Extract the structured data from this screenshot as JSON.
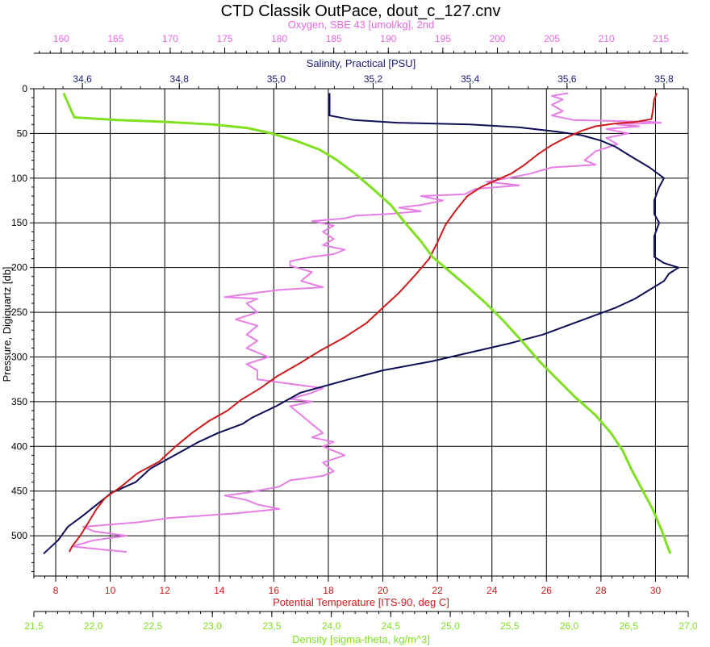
{
  "chart_data": {
    "type": "line",
    "title": "CTD Classik OutPace, dout_c_127.cnv",
    "y_axis": {
      "label": "Pressure, Digiquartz [db]",
      "ticks": [
        0,
        50,
        100,
        150,
        200,
        250,
        300,
        350,
        400,
        450,
        500
      ],
      "range": [
        0,
        545
      ],
      "inverted": true
    },
    "x_axes": [
      {
        "id": "oxygen",
        "label": "Oxygen, SBE 43 [umol/kg], 2nd",
        "position": "top-1",
        "color": "#e667e6",
        "range": [
          157.5,
          217.5
        ],
        "ticks": [
          160,
          165,
          170,
          175,
          180,
          185,
          190,
          195,
          200,
          205,
          210,
          215
        ],
        "tick_labels": [
          "160",
          "165",
          "170",
          "175",
          "180",
          "185",
          "190",
          "195",
          "200",
          "205",
          "210",
          "215"
        ]
      },
      {
        "id": "salinity",
        "label": "Salinity, Practical [PSU]",
        "position": "top-2",
        "color": "#1a1a7a",
        "range": [
          34.5,
          35.85
        ],
        "ticks": [
          34.6,
          34.8,
          35.0,
          35.2,
          35.4,
          35.6,
          35.8
        ],
        "tick_labels": [
          "34,6",
          "34,8",
          "35,0",
          "35,2",
          "35,4",
          "35,6",
          "35,8"
        ]
      },
      {
        "id": "temperature",
        "label": "Potential Temperature [ITS-90, deg C]",
        "position": "bottom-1",
        "color": "#cc1a1a",
        "range": [
          7.2,
          31.2
        ],
        "ticks": [
          8,
          10,
          12,
          14,
          16,
          18,
          20,
          22,
          24,
          26,
          28,
          30
        ],
        "tick_labels": [
          "8",
          "10",
          "12",
          "14",
          "16",
          "18",
          "20",
          "22",
          "24",
          "26",
          "28",
          "30"
        ]
      },
      {
        "id": "density",
        "label": "Density [sigma-theta, kg/m^3]",
        "position": "bottom-2",
        "color": "#80e020",
        "range": [
          21.5,
          27.0
        ],
        "ticks": [
          21.5,
          22.0,
          22.5,
          23.0,
          23.5,
          24.0,
          24.5,
          25.0,
          25.5,
          26.0,
          26.5,
          27.0
        ],
        "tick_labels": [
          "21,5",
          "22,0",
          "22,5",
          "23,0",
          "23,5",
          "24,0",
          "24,5",
          "25,0",
          "25,5",
          "26,0",
          "26,5",
          "27,0"
        ]
      }
    ],
    "grid": true,
    "legend": "none",
    "series": [
      {
        "axis": "oxygen",
        "color": "#e67ee6",
        "points": [
          [
            206.5,
            5
          ],
          [
            205,
            8
          ],
          [
            206,
            12
          ],
          [
            205,
            18
          ],
          [
            206,
            25
          ],
          [
            205,
            30
          ],
          [
            207,
            35
          ],
          [
            214,
            37
          ],
          [
            215,
            38
          ],
          [
            211,
            40
          ],
          [
            213,
            42
          ],
          [
            210,
            45
          ],
          [
            212,
            50
          ],
          [
            210,
            55
          ],
          [
            211,
            62
          ],
          [
            209,
            70
          ],
          [
            208,
            80
          ],
          [
            209,
            85
          ],
          [
            205,
            88
          ],
          [
            203,
            95
          ],
          [
            201,
            100
          ],
          [
            199,
            104
          ],
          [
            202,
            108
          ],
          [
            198,
            112
          ],
          [
            197,
            118
          ],
          [
            193,
            120
          ],
          [
            195,
            125
          ],
          [
            193,
            130
          ],
          [
            191,
            133
          ],
          [
            193,
            137
          ],
          [
            190,
            140
          ],
          [
            187,
            142
          ],
          [
            186,
            145
          ],
          [
            183,
            148
          ],
          [
            185,
            153
          ],
          [
            184,
            160
          ],
          [
            185,
            168
          ],
          [
            184,
            175
          ],
          [
            186,
            180
          ],
          [
            185,
            185
          ],
          [
            183,
            188
          ],
          [
            181,
            193
          ],
          [
            181,
            198
          ],
          [
            183,
            205
          ],
          [
            182,
            215
          ],
          [
            184,
            222
          ],
          [
            180,
            225
          ],
          [
            178,
            228
          ],
          [
            175,
            233
          ],
          [
            178,
            235
          ],
          [
            177,
            240
          ],
          [
            178,
            250
          ],
          [
            176,
            258
          ],
          [
            178,
            265
          ],
          [
            177,
            275
          ],
          [
            178,
            282
          ],
          [
            177,
            290
          ],
          [
            179,
            300
          ],
          [
            177,
            308
          ],
          [
            178,
            315
          ],
          [
            178,
            325
          ],
          [
            181,
            330
          ],
          [
            184,
            335
          ],
          [
            183,
            340
          ],
          [
            181,
            347
          ],
          [
            183,
            350
          ],
          [
            181,
            355
          ],
          [
            182,
            365
          ],
          [
            183,
            375
          ],
          [
            184,
            385
          ],
          [
            183,
            390
          ],
          [
            185,
            395
          ],
          [
            184,
            400
          ],
          [
            186,
            410
          ],
          [
            184,
            418
          ],
          [
            185,
            428
          ],
          [
            184,
            433
          ],
          [
            181,
            438
          ],
          [
            180,
            445
          ],
          [
            177,
            452
          ],
          [
            175,
            455
          ],
          [
            177,
            460
          ],
          [
            178,
            465
          ],
          [
            180,
            470
          ],
          [
            176,
            475
          ],
          [
            170,
            480
          ],
          [
            167,
            485
          ],
          [
            162,
            490
          ],
          [
            163,
            495
          ],
          [
            166,
            500
          ],
          [
            163,
            505
          ],
          [
            161,
            512
          ],
          [
            166,
            518
          ]
        ]
      },
      {
        "axis": "salinity",
        "color": "#0d0d55",
        "points": [
          [
            35.11,
            5
          ],
          [
            35.11,
            15
          ],
          [
            35.11,
            30
          ],
          [
            35.16,
            35
          ],
          [
            35.25,
            38
          ],
          [
            35.4,
            40
          ],
          [
            35.5,
            43
          ],
          [
            35.58,
            48
          ],
          [
            35.63,
            52
          ],
          [
            35.67,
            58
          ],
          [
            35.7,
            65
          ],
          [
            35.73,
            75
          ],
          [
            35.77,
            88
          ],
          [
            35.8,
            100
          ],
          [
            35.79,
            110
          ],
          [
            35.78,
            125
          ],
          [
            35.78,
            140
          ],
          [
            35.79,
            150
          ],
          [
            35.78,
            165
          ],
          [
            35.78,
            178
          ],
          [
            35.78,
            188
          ],
          [
            35.8,
            195
          ],
          [
            35.83,
            200
          ],
          [
            35.81,
            207
          ],
          [
            35.8,
            215
          ],
          [
            35.77,
            225
          ],
          [
            35.74,
            235
          ],
          [
            35.7,
            245
          ],
          [
            35.65,
            255
          ],
          [
            35.6,
            265
          ],
          [
            35.55,
            275
          ],
          [
            35.48,
            285
          ],
          [
            35.4,
            295
          ],
          [
            35.32,
            305
          ],
          [
            35.22,
            315
          ],
          [
            35.15,
            325
          ],
          [
            35.05,
            340
          ],
          [
            35.0,
            355
          ],
          [
            34.95,
            368
          ],
          [
            34.93,
            375
          ],
          [
            34.88,
            385
          ],
          [
            34.84,
            395
          ],
          [
            34.79,
            410
          ],
          [
            34.74,
            425
          ],
          [
            34.71,
            440
          ],
          [
            34.66,
            452
          ],
          [
            34.63,
            465
          ],
          [
            34.6,
            478
          ],
          [
            34.57,
            490
          ],
          [
            34.55,
            505
          ],
          [
            34.53,
            515
          ],
          [
            34.52,
            520
          ]
        ]
      },
      {
        "axis": "temperature",
        "color": "#cc1a1a",
        "points": [
          [
            30.05,
            5
          ],
          [
            29.95,
            12
          ],
          [
            29.9,
            25
          ],
          [
            29.85,
            34
          ],
          [
            29.3,
            37
          ],
          [
            28.5,
            39
          ],
          [
            27.8,
            42
          ],
          [
            27.3,
            47
          ],
          [
            26.7,
            55
          ],
          [
            26.2,
            63
          ],
          [
            25.7,
            73
          ],
          [
            25.2,
            85
          ],
          [
            24.7,
            95
          ],
          [
            24.1,
            103
          ],
          [
            23.6,
            110
          ],
          [
            23.1,
            120
          ],
          [
            22.7,
            135
          ],
          [
            22.3,
            152
          ],
          [
            22.0,
            172
          ],
          [
            21.7,
            190
          ],
          [
            21.2,
            208
          ],
          [
            20.6,
            228
          ],
          [
            20.0,
            245
          ],
          [
            19.4,
            262
          ],
          [
            18.6,
            278
          ],
          [
            17.7,
            293
          ],
          [
            16.9,
            308
          ],
          [
            16.1,
            322
          ],
          [
            15.5,
            335
          ],
          [
            14.8,
            348
          ],
          [
            14.3,
            360
          ],
          [
            13.6,
            372
          ],
          [
            13.0,
            385
          ],
          [
            12.4,
            400
          ],
          [
            11.8,
            417
          ],
          [
            11.0,
            430
          ],
          [
            10.4,
            445
          ],
          [
            9.8,
            458
          ],
          [
            9.5,
            470
          ],
          [
            9.2,
            485
          ],
          [
            8.9,
            500
          ],
          [
            8.6,
            512
          ],
          [
            8.5,
            518
          ]
        ]
      },
      {
        "axis": "density",
        "color": "#80e020",
        "points": [
          [
            21.75,
            5
          ],
          [
            21.8,
            20
          ],
          [
            21.84,
            32
          ],
          [
            22.2,
            35
          ],
          [
            22.6,
            37
          ],
          [
            23.0,
            40
          ],
          [
            23.3,
            44
          ],
          [
            23.5,
            50
          ],
          [
            23.7,
            58
          ],
          [
            23.9,
            68
          ],
          [
            24.05,
            80
          ],
          [
            24.2,
            95
          ],
          [
            24.35,
            112
          ],
          [
            24.5,
            130
          ],
          [
            24.62,
            150
          ],
          [
            24.75,
            170
          ],
          [
            24.85,
            188
          ],
          [
            25.0,
            205
          ],
          [
            25.15,
            222
          ],
          [
            25.3,
            240
          ],
          [
            25.45,
            260
          ],
          [
            25.6,
            282
          ],
          [
            25.75,
            305
          ],
          [
            25.9,
            325
          ],
          [
            26.05,
            345
          ],
          [
            26.22,
            365
          ],
          [
            26.35,
            385
          ],
          [
            26.45,
            405
          ],
          [
            26.52,
            425
          ],
          [
            26.6,
            445
          ],
          [
            26.7,
            470
          ],
          [
            26.78,
            495
          ],
          [
            26.82,
            510
          ],
          [
            26.85,
            520
          ]
        ]
      }
    ]
  }
}
